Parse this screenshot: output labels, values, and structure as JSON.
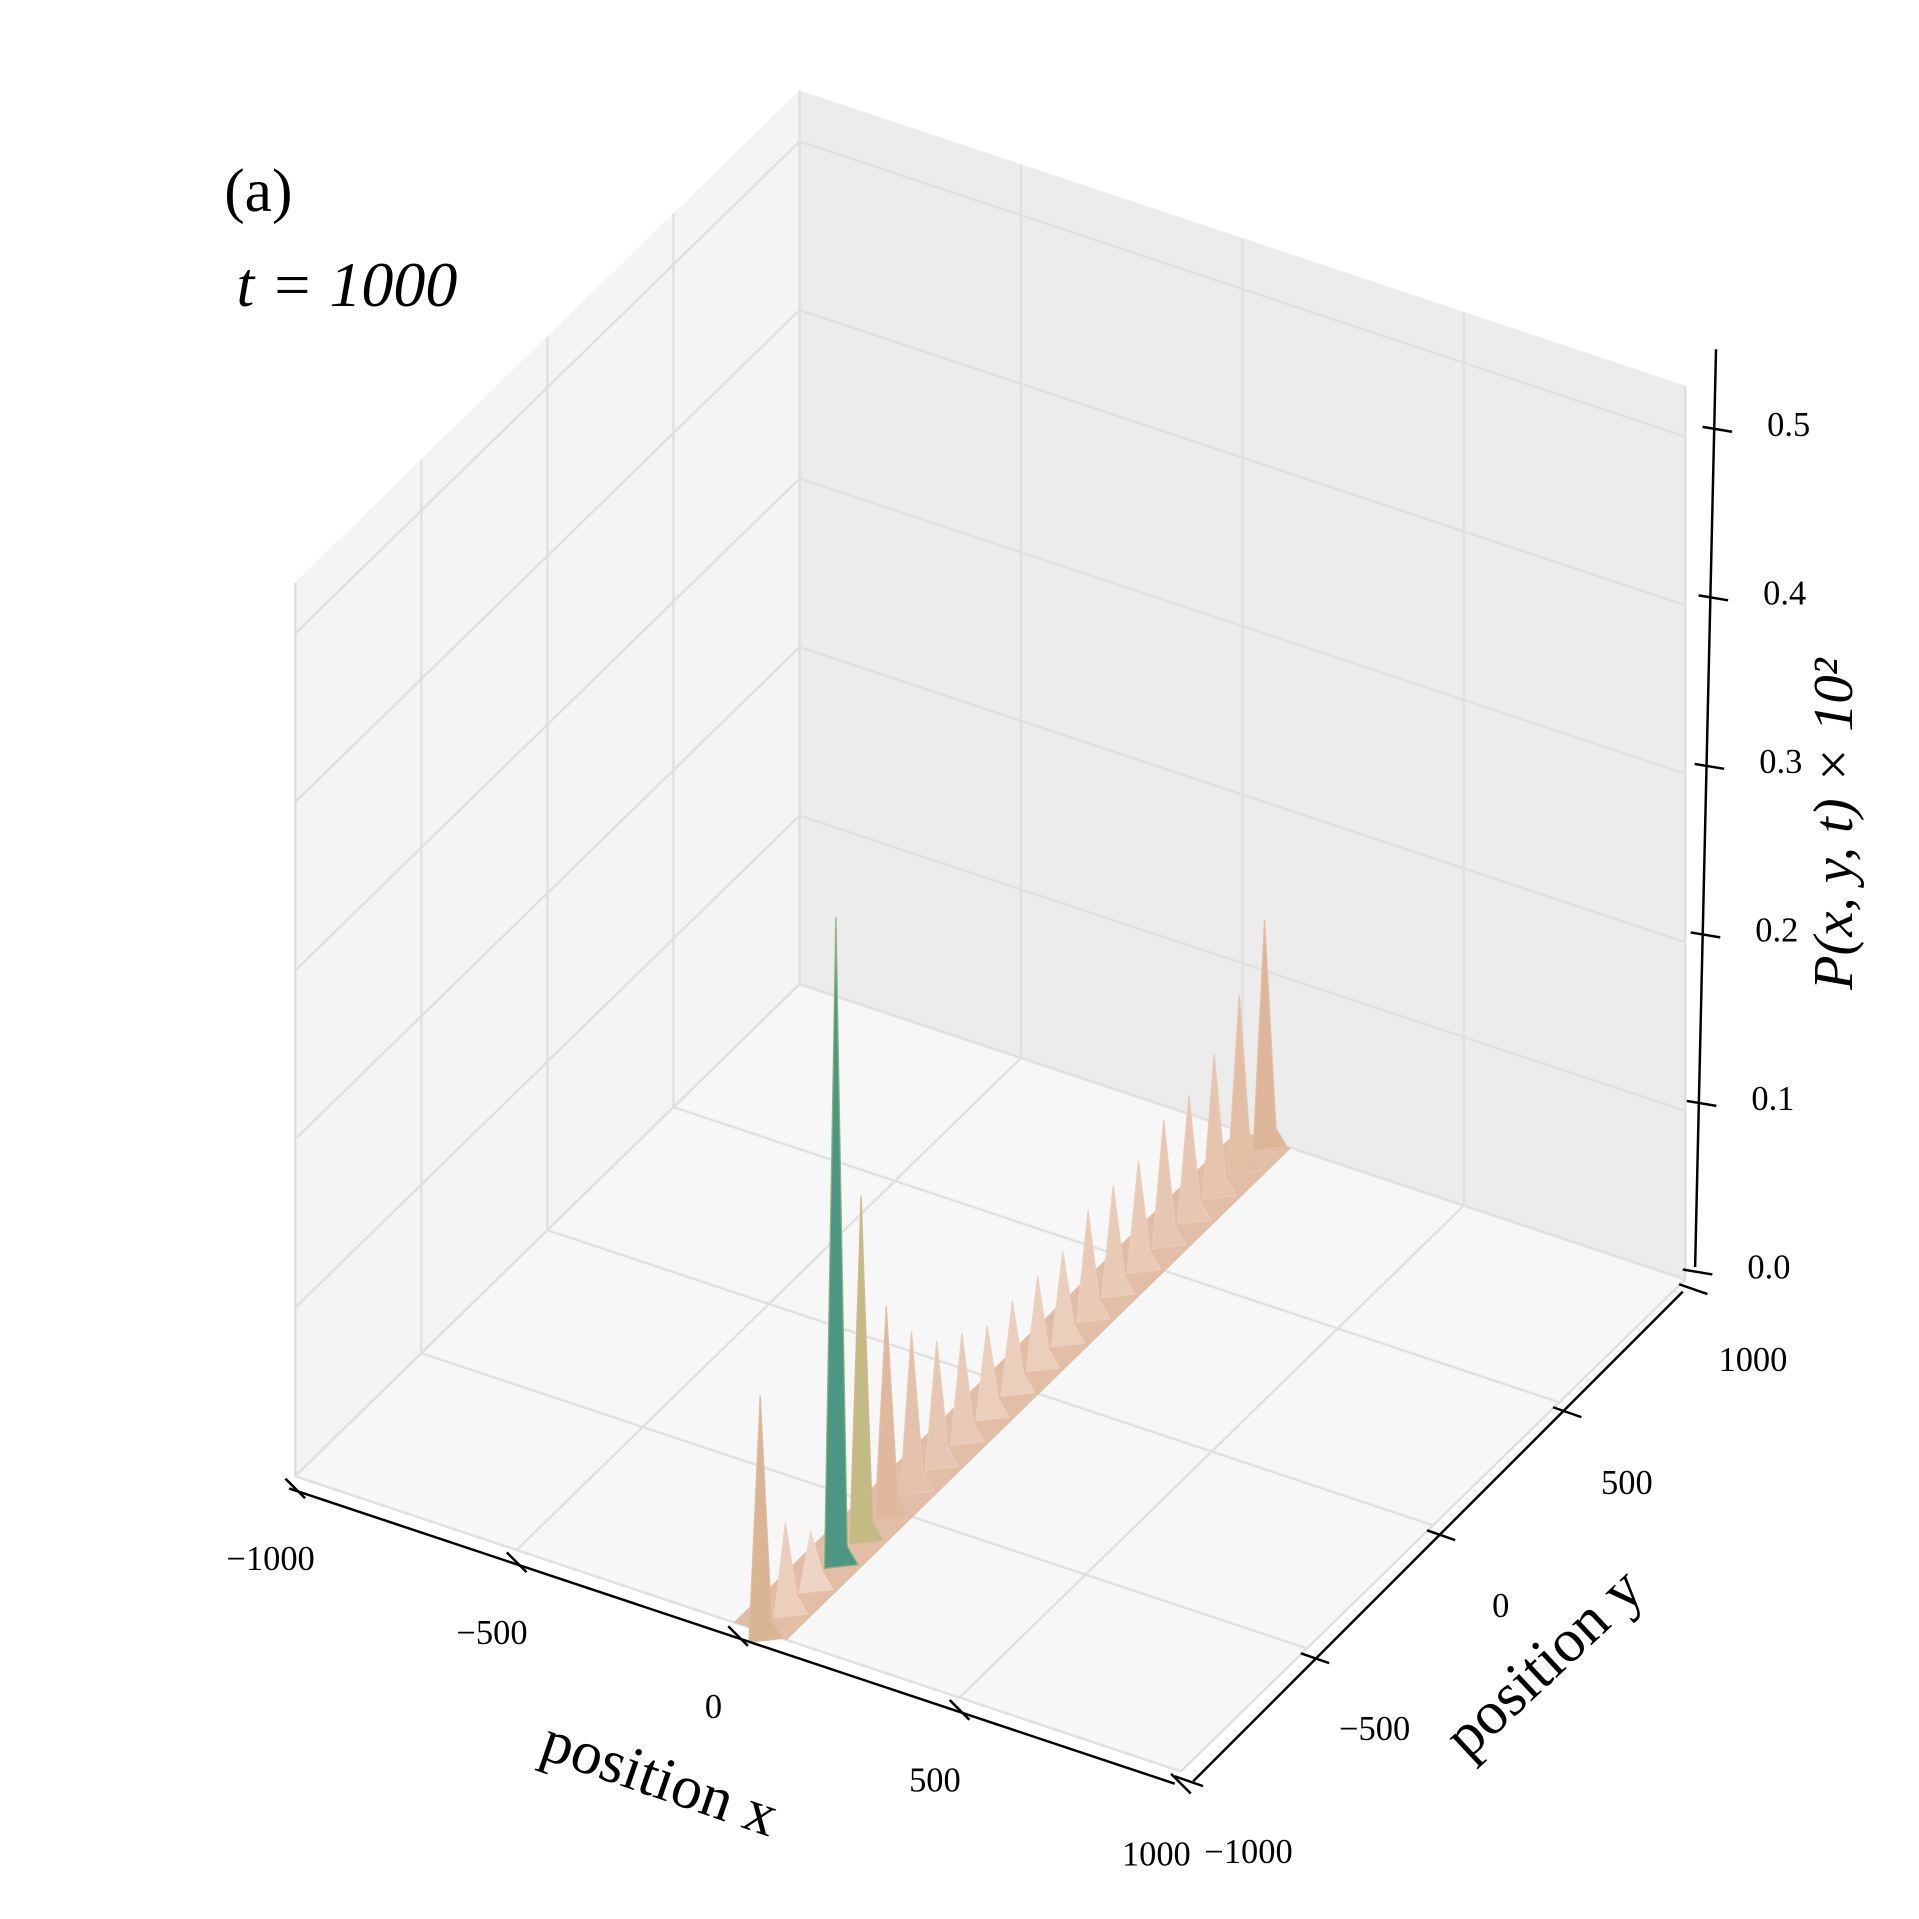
{
  "chart_data": {
    "type": "surface",
    "panel_label": "(a)",
    "title": "t = 1000",
    "xlabel": "position x",
    "ylabel": "position y",
    "zlabel": "P(x, y, t) × 10²",
    "xlim": [
      -1000,
      1000
    ],
    "ylim": [
      -1000,
      1000
    ],
    "zlim": [
      0,
      0.53
    ],
    "xticks": [
      {
        "value": -1000,
        "label": "−1000"
      },
      {
        "value": -500,
        "label": "−500"
      },
      0,
      500,
      1000
    ],
    "yticks": [
      {
        "value": -1000,
        "label": "−1000"
      },
      {
        "value": -500,
        "label": "−500"
      },
      0,
      500,
      1000
    ],
    "zticks": [
      {
        "value": 0,
        "label": "0.0"
      },
      0.1,
      0.2,
      0.3,
      0.4,
      0.5
    ],
    "grid": true,
    "colormap": [
      "#f3ddd2",
      "#ddb497",
      "#a9c272",
      "#3f8f86",
      "#12124e"
    ],
    "x": [
      50,
      50,
      50,
      50,
      50,
      50,
      50,
      50,
      50,
      50,
      50,
      50,
      50,
      50,
      50,
      50,
      50,
      50,
      50,
      50,
      50
    ],
    "y": [
      -1000,
      -900,
      -800,
      -700,
      -600,
      -500,
      -400,
      -300,
      -200,
      -100,
      0,
      100,
      200,
      300,
      400,
      500,
      600,
      700,
      800,
      900,
      1000
    ],
    "values": [
      0.14,
      0.05,
      0.03,
      0.38,
      0.2,
      0.12,
      0.09,
      0.07,
      0.06,
      0.05,
      0.05,
      0.05,
      0.05,
      0.06,
      0.06,
      0.06,
      0.07,
      0.07,
      0.08,
      0.1,
      0.13
    ]
  }
}
